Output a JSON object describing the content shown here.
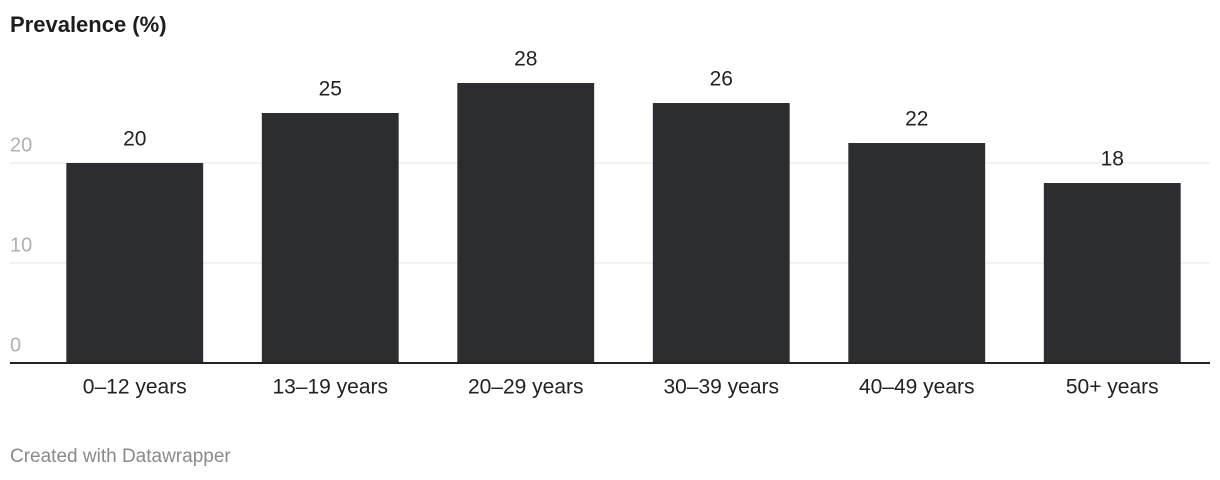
{
  "chart_data": {
    "type": "bar",
    "title": "Prevalence (%)",
    "categories": [
      "0–12 years",
      "13–19 years",
      "20–29 years",
      "30–39 years",
      "40–49 years",
      "50+ years"
    ],
    "values": [
      20,
      25,
      28,
      26,
      22,
      18
    ],
    "color": "#2b2d31",
    "ylim": [
      0,
      28
    ],
    "yticks": [
      0,
      10,
      20
    ],
    "grid": true,
    "footer": "Created with Datawrapper"
  }
}
